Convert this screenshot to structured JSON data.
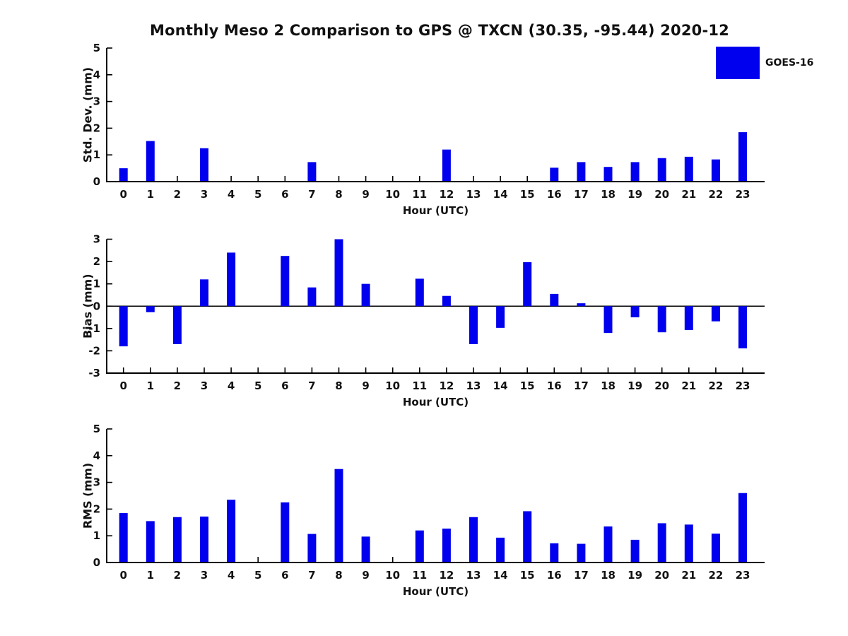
{
  "page": {
    "title": "Monthly Meso 2 Comparison to GPS @ TXCN (30.35, -95.44) 2020-12"
  },
  "legend": {
    "label": "GOES-16",
    "swatch_color": "#0000ee",
    "position": "upper-right",
    "frame": false
  },
  "colors": {
    "bar": "#0000ee",
    "axis": "#000000",
    "text": "#111111",
    "background": "#ffffff"
  },
  "chart_data": [
    {
      "type": "bar",
      "id": "std-dev",
      "series_name": "GOES-16",
      "ylabel": "Std. Dev. (mm)",
      "xlabel": "Hour (UTC)",
      "categories": [
        "0",
        "1",
        "2",
        "3",
        "4",
        "5",
        "6",
        "7",
        "8",
        "9",
        "10",
        "11",
        "12",
        "13",
        "14",
        "15",
        "16",
        "17",
        "18",
        "19",
        "20",
        "21",
        "22",
        "23"
      ],
      "values": [
        0.5,
        1.52,
        0,
        1.25,
        0,
        0,
        0,
        0.73,
        0,
        0,
        0,
        0,
        1.2,
        0,
        0,
        0,
        0.52,
        0.73,
        0.55,
        0.73,
        0.88,
        0.93,
        0.83,
        1.85
      ],
      "ylim": [
        0,
        5
      ],
      "yticks": [
        0,
        1,
        2,
        3,
        4,
        5
      ],
      "grid": false,
      "bar_color": "#0000ee"
    },
    {
      "type": "bar",
      "id": "bias",
      "series_name": "GOES-16",
      "ylabel": "Bias (mm)",
      "xlabel": "Hour (UTC)",
      "categories": [
        "0",
        "1",
        "2",
        "3",
        "4",
        "5",
        "6",
        "7",
        "8",
        "9",
        "10",
        "11",
        "12",
        "13",
        "14",
        "15",
        "16",
        "17",
        "18",
        "19",
        "20",
        "21",
        "22",
        "23"
      ],
      "values": [
        -1.8,
        -0.27,
        -1.7,
        1.2,
        2.4,
        0,
        2.25,
        0.84,
        3.0,
        1.0,
        0,
        1.23,
        0.46,
        -1.7,
        -0.97,
        1.97,
        0.55,
        0.13,
        -1.2,
        -0.5,
        -1.17,
        -1.07,
        -0.68,
        -1.89
      ],
      "ylim": [
        -3,
        3
      ],
      "yticks": [
        -3,
        -2,
        -1,
        0,
        1,
        2,
        3
      ],
      "grid": false,
      "bar_color": "#0000ee"
    },
    {
      "type": "bar",
      "id": "rms",
      "series_name": "GOES-16",
      "ylabel": "RMS (mm)",
      "xlabel": "Hour (UTC)",
      "categories": [
        "0",
        "1",
        "2",
        "3",
        "4",
        "5",
        "6",
        "7",
        "8",
        "9",
        "10",
        "11",
        "12",
        "13",
        "14",
        "15",
        "16",
        "17",
        "18",
        "19",
        "20",
        "21",
        "22",
        "23"
      ],
      "values": [
        1.85,
        1.55,
        1.7,
        1.72,
        2.35,
        0,
        2.25,
        1.07,
        3.5,
        0.97,
        0,
        1.2,
        1.27,
        1.7,
        0.93,
        1.92,
        0.72,
        0.7,
        1.35,
        0.85,
        1.47,
        1.42,
        1.08,
        2.6
      ],
      "ylim": [
        0,
        5
      ],
      "yticks": [
        0,
        1,
        2,
        3,
        4,
        5
      ],
      "grid": false,
      "bar_color": "#0000ee"
    }
  ]
}
